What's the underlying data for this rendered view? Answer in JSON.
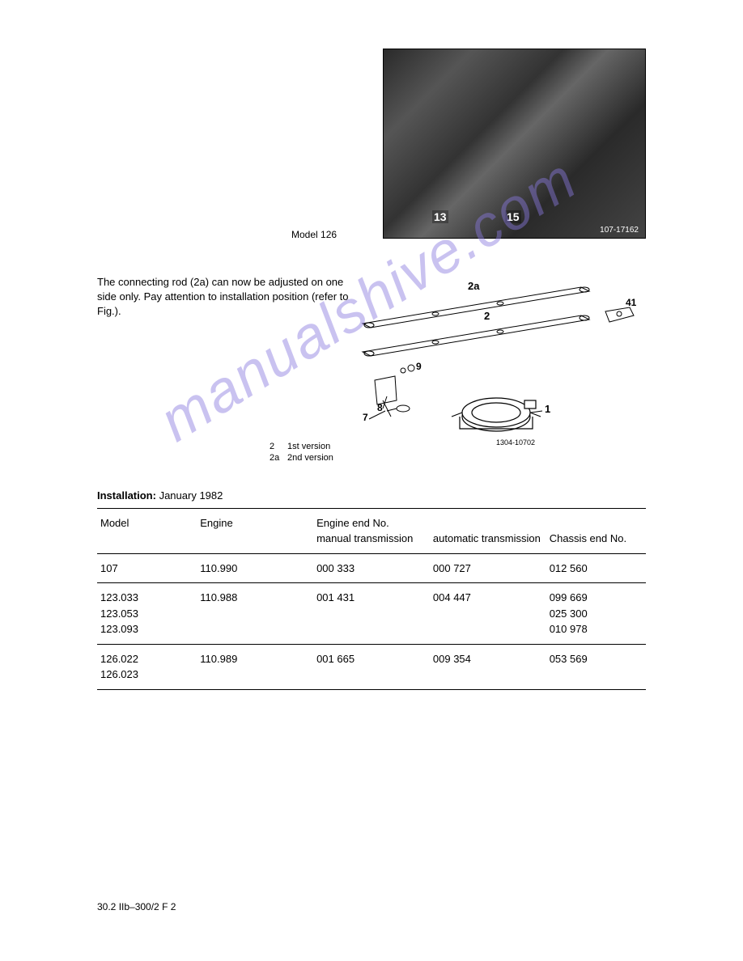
{
  "photo": {
    "caption": "Model 126",
    "label_13": "13",
    "label_15": "15",
    "image_id": "107-17162"
  },
  "body_text": "The connecting rod (2a) can now be adjusted on one side only. Pay attention to installation position (refer to Fig.).",
  "diagram": {
    "labels": {
      "2a": "2a",
      "2": "2",
      "41": "41",
      "9": "9",
      "8": "8",
      "7": "7",
      "1": "1"
    },
    "drawing_id": "1304-10702",
    "legend": [
      {
        "key": "2",
        "text": "1st version"
      },
      {
        "key": "2a",
        "text": "2nd version"
      }
    ]
  },
  "installation": {
    "label": "Installation:",
    "value": "January 1982"
  },
  "table": {
    "headers": {
      "model": "Model",
      "engine": "Engine",
      "engine_end": "Engine end No.",
      "manual": "manual transmission",
      "auto": "automatic transmission",
      "chassis": "Chassis end No."
    },
    "rows": [
      {
        "model": "107",
        "engine": "110.990",
        "manual": "000 333",
        "auto": "000 727",
        "chassis": "012 560"
      },
      {
        "model": "123.033\n123.053\n123.093",
        "engine": "110.988",
        "manual": "001 431",
        "auto": "004 447",
        "chassis": "099 669\n025 300\n010 978"
      },
      {
        "model": "126.022\n126.023",
        "engine": "110.989",
        "manual": "001 665",
        "auto": "009 354",
        "chassis": "053 569"
      }
    ]
  },
  "footer": "30.2 IIb–300/2   F 2",
  "watermark": "manualshive.com",
  "colors": {
    "text": "#000000",
    "background": "#ffffff",
    "watermark": "#8a7ae0",
    "photo_dark": "#2a2a2a",
    "photo_mid": "#555555"
  }
}
